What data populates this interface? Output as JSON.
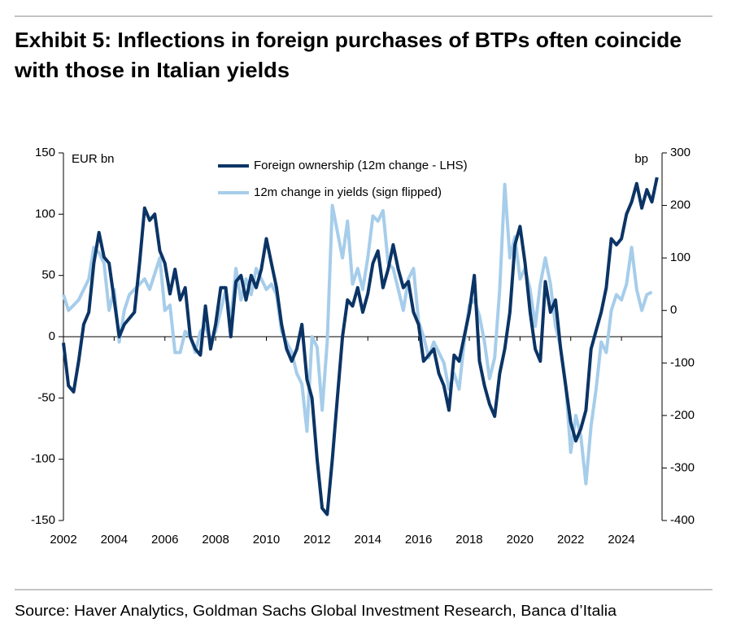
{
  "chart_data": {
    "type": "line",
    "title": [
      "Exhibit 5: Inflections in foreign purchases of BTPs often coincide",
      "with those in Italian yields"
    ],
    "y_label": "EUR bn",
    "y2_label": "bp",
    "source": "Source: Haver Analytics, Goldman Sachs Global Investment Research, Banca d’Italia",
    "legend": "upper center",
    "xlim": [
      2002,
      2025.6
    ],
    "xticks": [
      2002,
      2004,
      2006,
      2008,
      2010,
      2012,
      2014,
      2016,
      2018,
      2020,
      2022,
      2024
    ],
    "ylim": [
      -150,
      150
    ],
    "yticks": [
      -150,
      -100,
      -50,
      0,
      50,
      100,
      150
    ],
    "y2lim": [
      -400,
      300
    ],
    "y2ticks": [
      -400,
      -300,
      -200,
      -100,
      0,
      100,
      200,
      300
    ],
    "x": [
      2002,
      2002.2,
      2002.4,
      2002.6,
      2002.8,
      2003,
      2003.2,
      2003.4,
      2003.6,
      2003.8,
      2004,
      2004.2,
      2004.4,
      2004.6,
      2004.8,
      2005,
      2005.2,
      2005.4,
      2005.6,
      2005.8,
      2006,
      2006.2,
      2006.4,
      2006.6,
      2006.8,
      2007,
      2007.2,
      2007.4,
      2007.6,
      2007.8,
      2008,
      2008.2,
      2008.4,
      2008.6,
      2008.8,
      2009,
      2009.2,
      2009.4,
      2009.6,
      2009.8,
      2010,
      2010.2,
      2010.4,
      2010.6,
      2010.8,
      2011,
      2011.2,
      2011.4,
      2011.6,
      2011.8,
      2012,
      2012.2,
      2012.4,
      2012.6,
      2012.8,
      2013,
      2013.2,
      2013.4,
      2013.6,
      2013.8,
      2014,
      2014.2,
      2014.4,
      2014.6,
      2014.8,
      2015,
      2015.2,
      2015.4,
      2015.6,
      2015.8,
      2016,
      2016.2,
      2016.4,
      2016.6,
      2016.8,
      2017,
      2017.2,
      2017.4,
      2017.6,
      2017.8,
      2018,
      2018.2,
      2018.4,
      2018.6,
      2018.8,
      2019,
      2019.2,
      2019.4,
      2019.6,
      2019.8,
      2020,
      2020.2,
      2020.4,
      2020.6,
      2020.8,
      2021,
      2021.2,
      2021.4,
      2021.6,
      2021.8,
      2022,
      2022.2,
      2022.4,
      2022.6,
      2022.8,
      2023,
      2023.2,
      2023.4,
      2023.6,
      2023.8,
      2024,
      2024.2,
      2024.4,
      2024.6,
      2024.8,
      2025,
      2025.2,
      2025.4
    ],
    "series": [
      {
        "name": "12m change in yields (sign flipped)",
        "color": "#a6cdea",
        "axis": "y2",
        "values": [
          30,
          0,
          10,
          20,
          40,
          60,
          120,
          110,
          90,
          0,
          40,
          -60,
          0,
          30,
          40,
          50,
          60,
          40,
          70,
          100,
          0,
          10,
          -80,
          -80,
          -40,
          -50,
          -80,
          -40,
          -30,
          -60,
          -40,
          0,
          40,
          -20,
          80,
          20,
          60,
          30,
          80,
          60,
          40,
          50,
          30,
          -40,
          -60,
          -80,
          -120,
          -140,
          -230,
          -50,
          -70,
          -190,
          -60,
          200,
          150,
          100,
          170,
          50,
          80,
          40,
          100,
          180,
          170,
          190,
          90,
          80,
          40,
          0,
          60,
          80,
          -20,
          -50,
          -90,
          -60,
          -80,
          -100,
          -150,
          -120,
          -150,
          -60,
          10,
          20,
          -10,
          -60,
          -130,
          -90,
          40,
          240,
          100,
          140,
          60,
          80,
          40,
          -30,
          50,
          100,
          50,
          -30,
          -70,
          -140,
          -270,
          -200,
          -240,
          -330,
          -220,
          -150,
          -60,
          -80,
          0,
          30,
          20,
          50,
          120,
          40,
          0,
          30,
          35,
          null
        ]
      },
      {
        "name": "Foreign ownership (12m change - LHS)",
        "color": "#0b3465",
        "values": [
          -5,
          -40,
          -45,
          -20,
          10,
          20,
          60,
          85,
          65,
          60,
          30,
          0,
          10,
          15,
          20,
          60,
          105,
          95,
          100,
          70,
          60,
          35,
          55,
          30,
          40,
          0,
          -10,
          -15,
          25,
          -10,
          10,
          40,
          40,
          0,
          45,
          50,
          30,
          50,
          40,
          55,
          80,
          60,
          40,
          10,
          -10,
          -20,
          -10,
          10,
          -35,
          -50,
          -100,
          -140,
          -145,
          -100,
          -50,
          0,
          30,
          25,
          40,
          20,
          35,
          60,
          70,
          40,
          55,
          75,
          55,
          40,
          45,
          20,
          10,
          -20,
          -15,
          -10,
          -30,
          -40,
          -60,
          -15,
          -20,
          0,
          20,
          50,
          -20,
          -40,
          -55,
          -65,
          -30,
          -10,
          20,
          75,
          90,
          60,
          20,
          -10,
          -20,
          45,
          20,
          30,
          -10,
          -40,
          -70,
          -85,
          -75,
          -60,
          -10,
          5,
          20,
          40,
          80,
          75,
          80,
          100,
          110,
          125,
          105,
          120,
          110,
          130
        ]
      }
    ]
  }
}
